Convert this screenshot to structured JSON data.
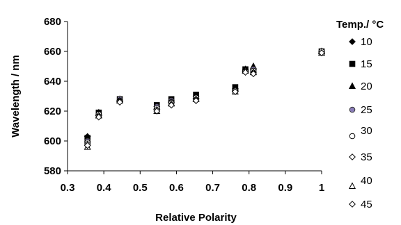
{
  "chart_data": {
    "type": "scatter",
    "title": "",
    "xlabel": "Relative Polarity",
    "ylabel": "Wavelength / nm",
    "xlim": [
      0.3,
      1.0
    ],
    "ylim": [
      580,
      680
    ],
    "xticks": [
      "0.3",
      "0.4",
      "0.5",
      "0.6",
      "0.7",
      "0.8",
      "0.9",
      "1"
    ],
    "yticks": [
      "580",
      "600",
      "620",
      "640",
      "660",
      "680"
    ],
    "grid": false,
    "legend_position": "right",
    "legend_title": "Temp./ °C",
    "series": [
      {
        "name": "10",
        "marker": "diamond-filled",
        "color": "#000000",
        "x": [
          0.355,
          0.386,
          0.444,
          0.546,
          0.586,
          0.654,
          0.762,
          0.79,
          0.812,
          1.0
        ],
        "y": [
          603,
          617,
          627,
          623,
          627,
          630,
          635,
          648,
          648,
          660
        ]
      },
      {
        "name": "15",
        "marker": "square-filled",
        "color": "#000000",
        "x": [
          0.355,
          0.386,
          0.444,
          0.546,
          0.586,
          0.654,
          0.762,
          0.79,
          0.812,
          1.0
        ],
        "y": [
          602,
          619,
          628,
          624,
          628,
          631,
          636,
          648,
          647,
          660
        ]
      },
      {
        "name": "20",
        "marker": "triangle-filled",
        "color": "#000000",
        "x": [
          0.355,
          0.386,
          0.444,
          0.546,
          0.586,
          0.654,
          0.762,
          0.79,
          0.812,
          1.0
        ],
        "y": [
          601,
          619,
          628,
          623,
          627,
          630,
          635,
          648,
          650,
          660
        ]
      },
      {
        "name": "25",
        "marker": "circle-filled",
        "color": "#8a7db8",
        "x": [
          0.355,
          0.386,
          0.444,
          0.546,
          0.586,
          0.654,
          0.762,
          0.79,
          0.812,
          1.0
        ],
        "y": [
          600,
          618,
          628,
          623,
          627,
          629,
          634,
          647,
          648,
          660
        ]
      },
      {
        "name": "30",
        "marker": "circle-open",
        "color": "#000000",
        "x": [
          0.355,
          0.386,
          0.444,
          0.546,
          0.586,
          0.654,
          0.762,
          0.79,
          0.812,
          1.0
        ],
        "y": [
          599,
          618,
          627,
          622,
          626,
          629,
          634,
          647,
          647,
          660
        ]
      },
      {
        "name": "35",
        "marker": "diamond-open",
        "color": "#000000",
        "x": [
          0.355,
          0.386,
          0.444,
          0.546,
          0.586,
          0.654,
          0.762,
          0.79,
          0.812,
          1.0
        ],
        "y": [
          598,
          617,
          627,
          621,
          626,
          628,
          634,
          647,
          646,
          659
        ]
      },
      {
        "name": "40",
        "marker": "triangle-open",
        "color": "#000000",
        "x": [
          0.355,
          0.386,
          0.444,
          0.546,
          0.586,
          0.654,
          0.762,
          0.79,
          0.812,
          1.0
        ],
        "y": [
          596,
          617,
          627,
          620,
          625,
          628,
          633,
          647,
          646,
          659
        ]
      },
      {
        "name": "45",
        "marker": "diamond-open",
        "color": "#000000",
        "x": [
          0.355,
          0.386,
          0.444,
          0.546,
          0.586,
          0.654,
          0.762,
          0.79,
          0.812,
          1.0
        ],
        "y": [
          597,
          616,
          626,
          620,
          624,
          627,
          633,
          646,
          645,
          659
        ]
      }
    ]
  }
}
